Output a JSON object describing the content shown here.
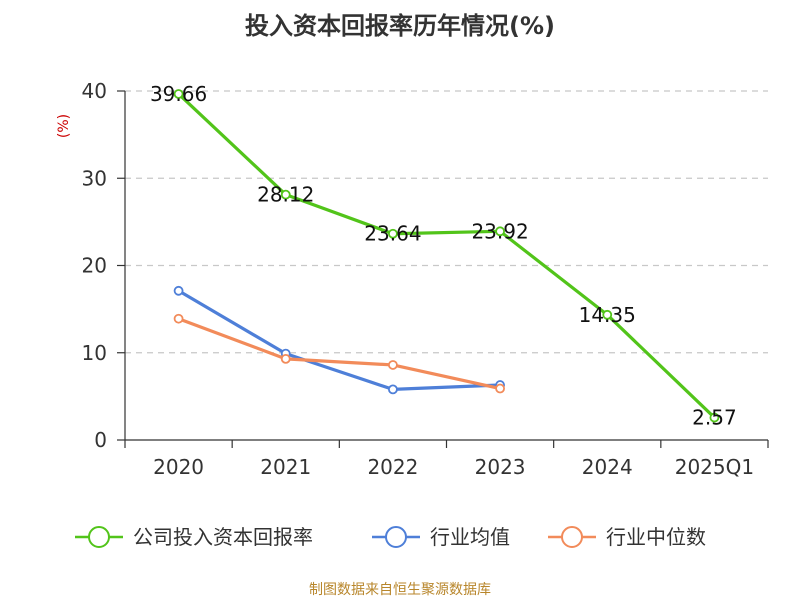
{
  "chart_data": {
    "type": "line",
    "title": "投入资本回报率历年情况(%)",
    "y_unit": "(%)",
    "categories": [
      "2020",
      "2021",
      "2022",
      "2023",
      "2024",
      "2025Q1"
    ],
    "ylim": [
      0,
      40
    ],
    "yticks": [
      0,
      10,
      20,
      30,
      40
    ],
    "grid": true,
    "legend_position": "bottom",
    "series": [
      {
        "name": "公司投入资本回报率",
        "color": "#52c41a",
        "values": [
          39.66,
          28.12,
          23.64,
          23.92,
          14.35,
          2.57
        ],
        "data_labels": [
          "39.66",
          "28.12",
          "23.64",
          "23.92",
          "14.35",
          "2.57"
        ]
      },
      {
        "name": "行业均值",
        "color": "#4e7fd8",
        "values": [
          17.1,
          9.9,
          5.8,
          6.3,
          null,
          null
        ]
      },
      {
        "name": "行业中位数",
        "color": "#f28b5a",
        "values": [
          13.9,
          9.3,
          8.6,
          5.9,
          null,
          null
        ]
      }
    ],
    "source": "制图数据来自恒生聚源数据库"
  }
}
